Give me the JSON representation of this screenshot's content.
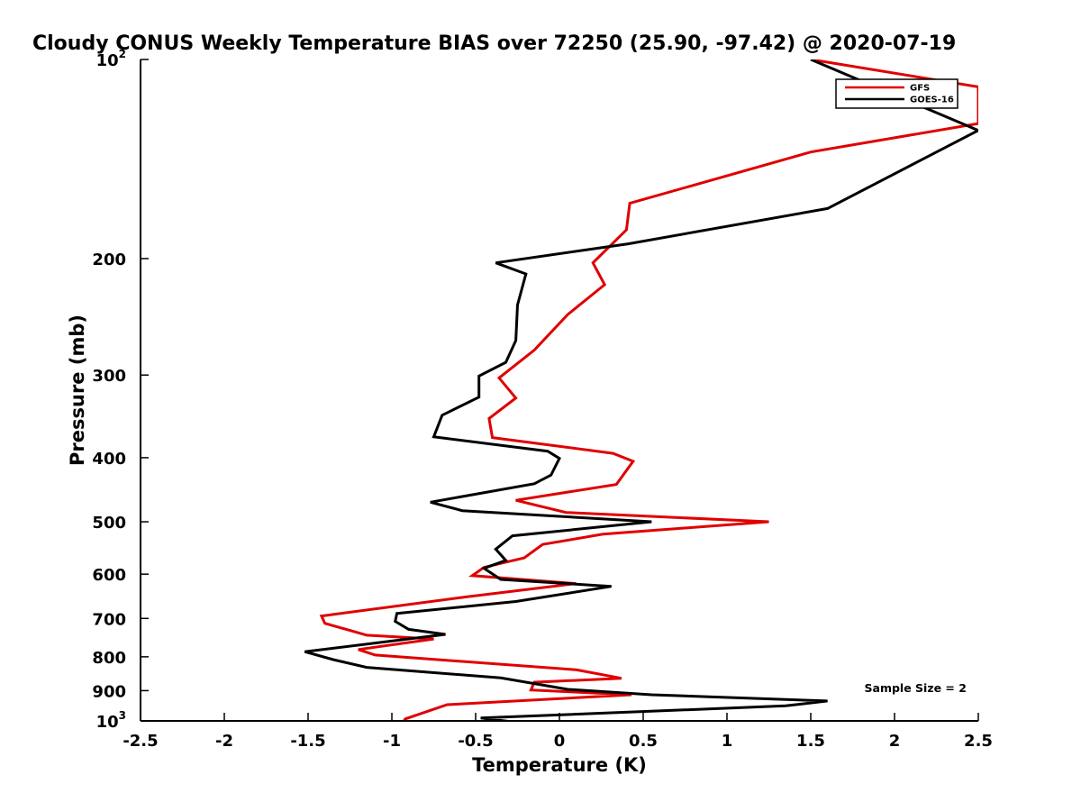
{
  "chart_data": {
    "type": "line",
    "title": "Cloudy CONUS Weekly Temperature BIAS over 72250 (25.90, -97.42) @ 2020-07-19",
    "xlabel": "Temperature (K)",
    "ylabel": "Pressure (mb)",
    "xlim": [
      -2.5,
      2.5
    ],
    "ylim": [
      100,
      1000
    ],
    "y_scale": "log",
    "y_reversed": true,
    "grid": false,
    "legend_position": "top-right",
    "x_ticks": [
      "-2.5",
      "-2",
      "-1.5",
      "-1",
      "-0.5",
      "0",
      "0.5",
      "1",
      "1.5",
      "2",
      "2.5"
    ],
    "y_tick_labels": [
      {
        "value": 100,
        "base": "10",
        "exp": "2"
      },
      {
        "value": 200,
        "base": "200",
        "exp": ""
      },
      {
        "value": 300,
        "base": "300",
        "exp": ""
      },
      {
        "value": 400,
        "base": "400",
        "exp": ""
      },
      {
        "value": 500,
        "base": "500",
        "exp": ""
      },
      {
        "value": 600,
        "base": "600",
        "exp": ""
      },
      {
        "value": 700,
        "base": "700",
        "exp": ""
      },
      {
        "value": 800,
        "base": "800",
        "exp": ""
      },
      {
        "value": 900,
        "base": "900",
        "exp": ""
      },
      {
        "value": 1000,
        "base": "10",
        "exp": "3"
      }
    ],
    "series": [
      {
        "name": "GFS",
        "color": "#e00000",
        "points": [
          [
            1.5,
            100
          ],
          [
            2.5,
            110
          ],
          [
            2.5,
            125
          ],
          [
            1.5,
            138
          ],
          [
            0.42,
            165
          ],
          [
            0.4,
            181
          ],
          [
            0.2,
            203
          ],
          [
            0.27,
            219
          ],
          [
            0.05,
            243
          ],
          [
            -0.15,
            275
          ],
          [
            -0.36,
            303
          ],
          [
            -0.26,
            325
          ],
          [
            -0.42,
            349
          ],
          [
            -0.4,
            373
          ],
          [
            0.32,
            394
          ],
          [
            0.44,
            405
          ],
          [
            0.34,
            439
          ],
          [
            -0.26,
            464
          ],
          [
            0.04,
            484
          ],
          [
            1.25,
            500
          ],
          [
            0.26,
            522
          ],
          [
            -0.1,
            541
          ],
          [
            -0.21,
            567
          ],
          [
            -0.45,
            586
          ],
          [
            -0.52,
            603
          ],
          [
            0.1,
            620
          ],
          [
            -0.55,
            649
          ],
          [
            -1.42,
            694
          ],
          [
            -1.4,
            712
          ],
          [
            -1.15,
            742
          ],
          [
            -0.75,
            752
          ],
          [
            -1.2,
            780
          ],
          [
            -1.1,
            795
          ],
          [
            0.1,
            837
          ],
          [
            0.37,
            862
          ],
          [
            -0.15,
            874
          ],
          [
            -0.17,
            898
          ],
          [
            0.43,
            913
          ],
          [
            -0.67,
            945
          ],
          [
            -0.92,
            993
          ],
          [
            -0.93,
            1002
          ]
        ]
      },
      {
        "name": "GOES-16",
        "color": "#000000",
        "points": [
          [
            1.5,
            100
          ],
          [
            2.5,
            128
          ],
          [
            1.6,
            168
          ],
          [
            0.41,
            190
          ],
          [
            -0.38,
            203
          ],
          [
            -0.2,
            211
          ],
          [
            -0.25,
            235
          ],
          [
            -0.26,
            266
          ],
          [
            -0.32,
            287
          ],
          [
            -0.48,
            301
          ],
          [
            -0.48,
            324
          ],
          [
            -0.7,
            345
          ],
          [
            -0.75,
            372
          ],
          [
            -0.07,
            391
          ],
          [
            0,
            401
          ],
          [
            -0.05,
            425
          ],
          [
            -0.15,
            438
          ],
          [
            -0.77,
            467
          ],
          [
            -0.58,
            481
          ],
          [
            0.55,
            500
          ],
          [
            -0.28,
            525
          ],
          [
            -0.38,
            550
          ],
          [
            -0.32,
            572
          ],
          [
            -0.45,
            588
          ],
          [
            -0.35,
            611
          ],
          [
            0.31,
            626
          ],
          [
            -0.26,
            660
          ],
          [
            -0.97,
            688
          ],
          [
            -0.98,
            707
          ],
          [
            -0.9,
            727
          ],
          [
            -0.68,
            740
          ],
          [
            -1.52,
            786
          ],
          [
            -1.35,
            808
          ],
          [
            -1.15,
            830
          ],
          [
            -0.35,
            861
          ],
          [
            0.05,
            896
          ],
          [
            0.55,
            913
          ],
          [
            1.6,
            933
          ],
          [
            1.35,
            949
          ],
          [
            -0.47,
            990
          ],
          [
            -0.3,
            1002
          ]
        ]
      }
    ],
    "annotations": [
      {
        "text": "Sample Size = 2",
        "x": 1.82,
        "y": 904
      }
    ]
  }
}
